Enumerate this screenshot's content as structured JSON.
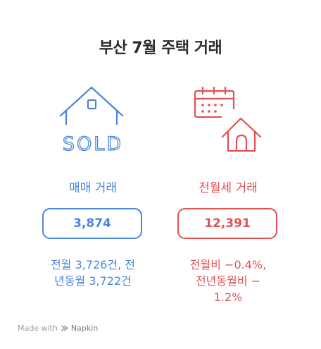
{
  "title": "부산 7월 주택 거래",
  "sale": {
    "label": "매매 거래",
    "value": "3,874",
    "note_line1": "전월 3,726건, 전",
    "note_line2": "년동월 3,722건",
    "icon": "house-sold-icon",
    "icon_text": "SOLD",
    "color": "#4a86d9"
  },
  "jeonse": {
    "label": "전월세 거래",
    "value": "12,391",
    "note_line1": "전월비 −0.4%,",
    "note_line2": "전년동월비 −",
    "note_line3": "1.2%",
    "icon": "calendar-house-icon",
    "color": "#e05252"
  },
  "footer": {
    "made_with": "Made with",
    "brand": "Napkin",
    "icon": "napkin-logo-icon"
  }
}
